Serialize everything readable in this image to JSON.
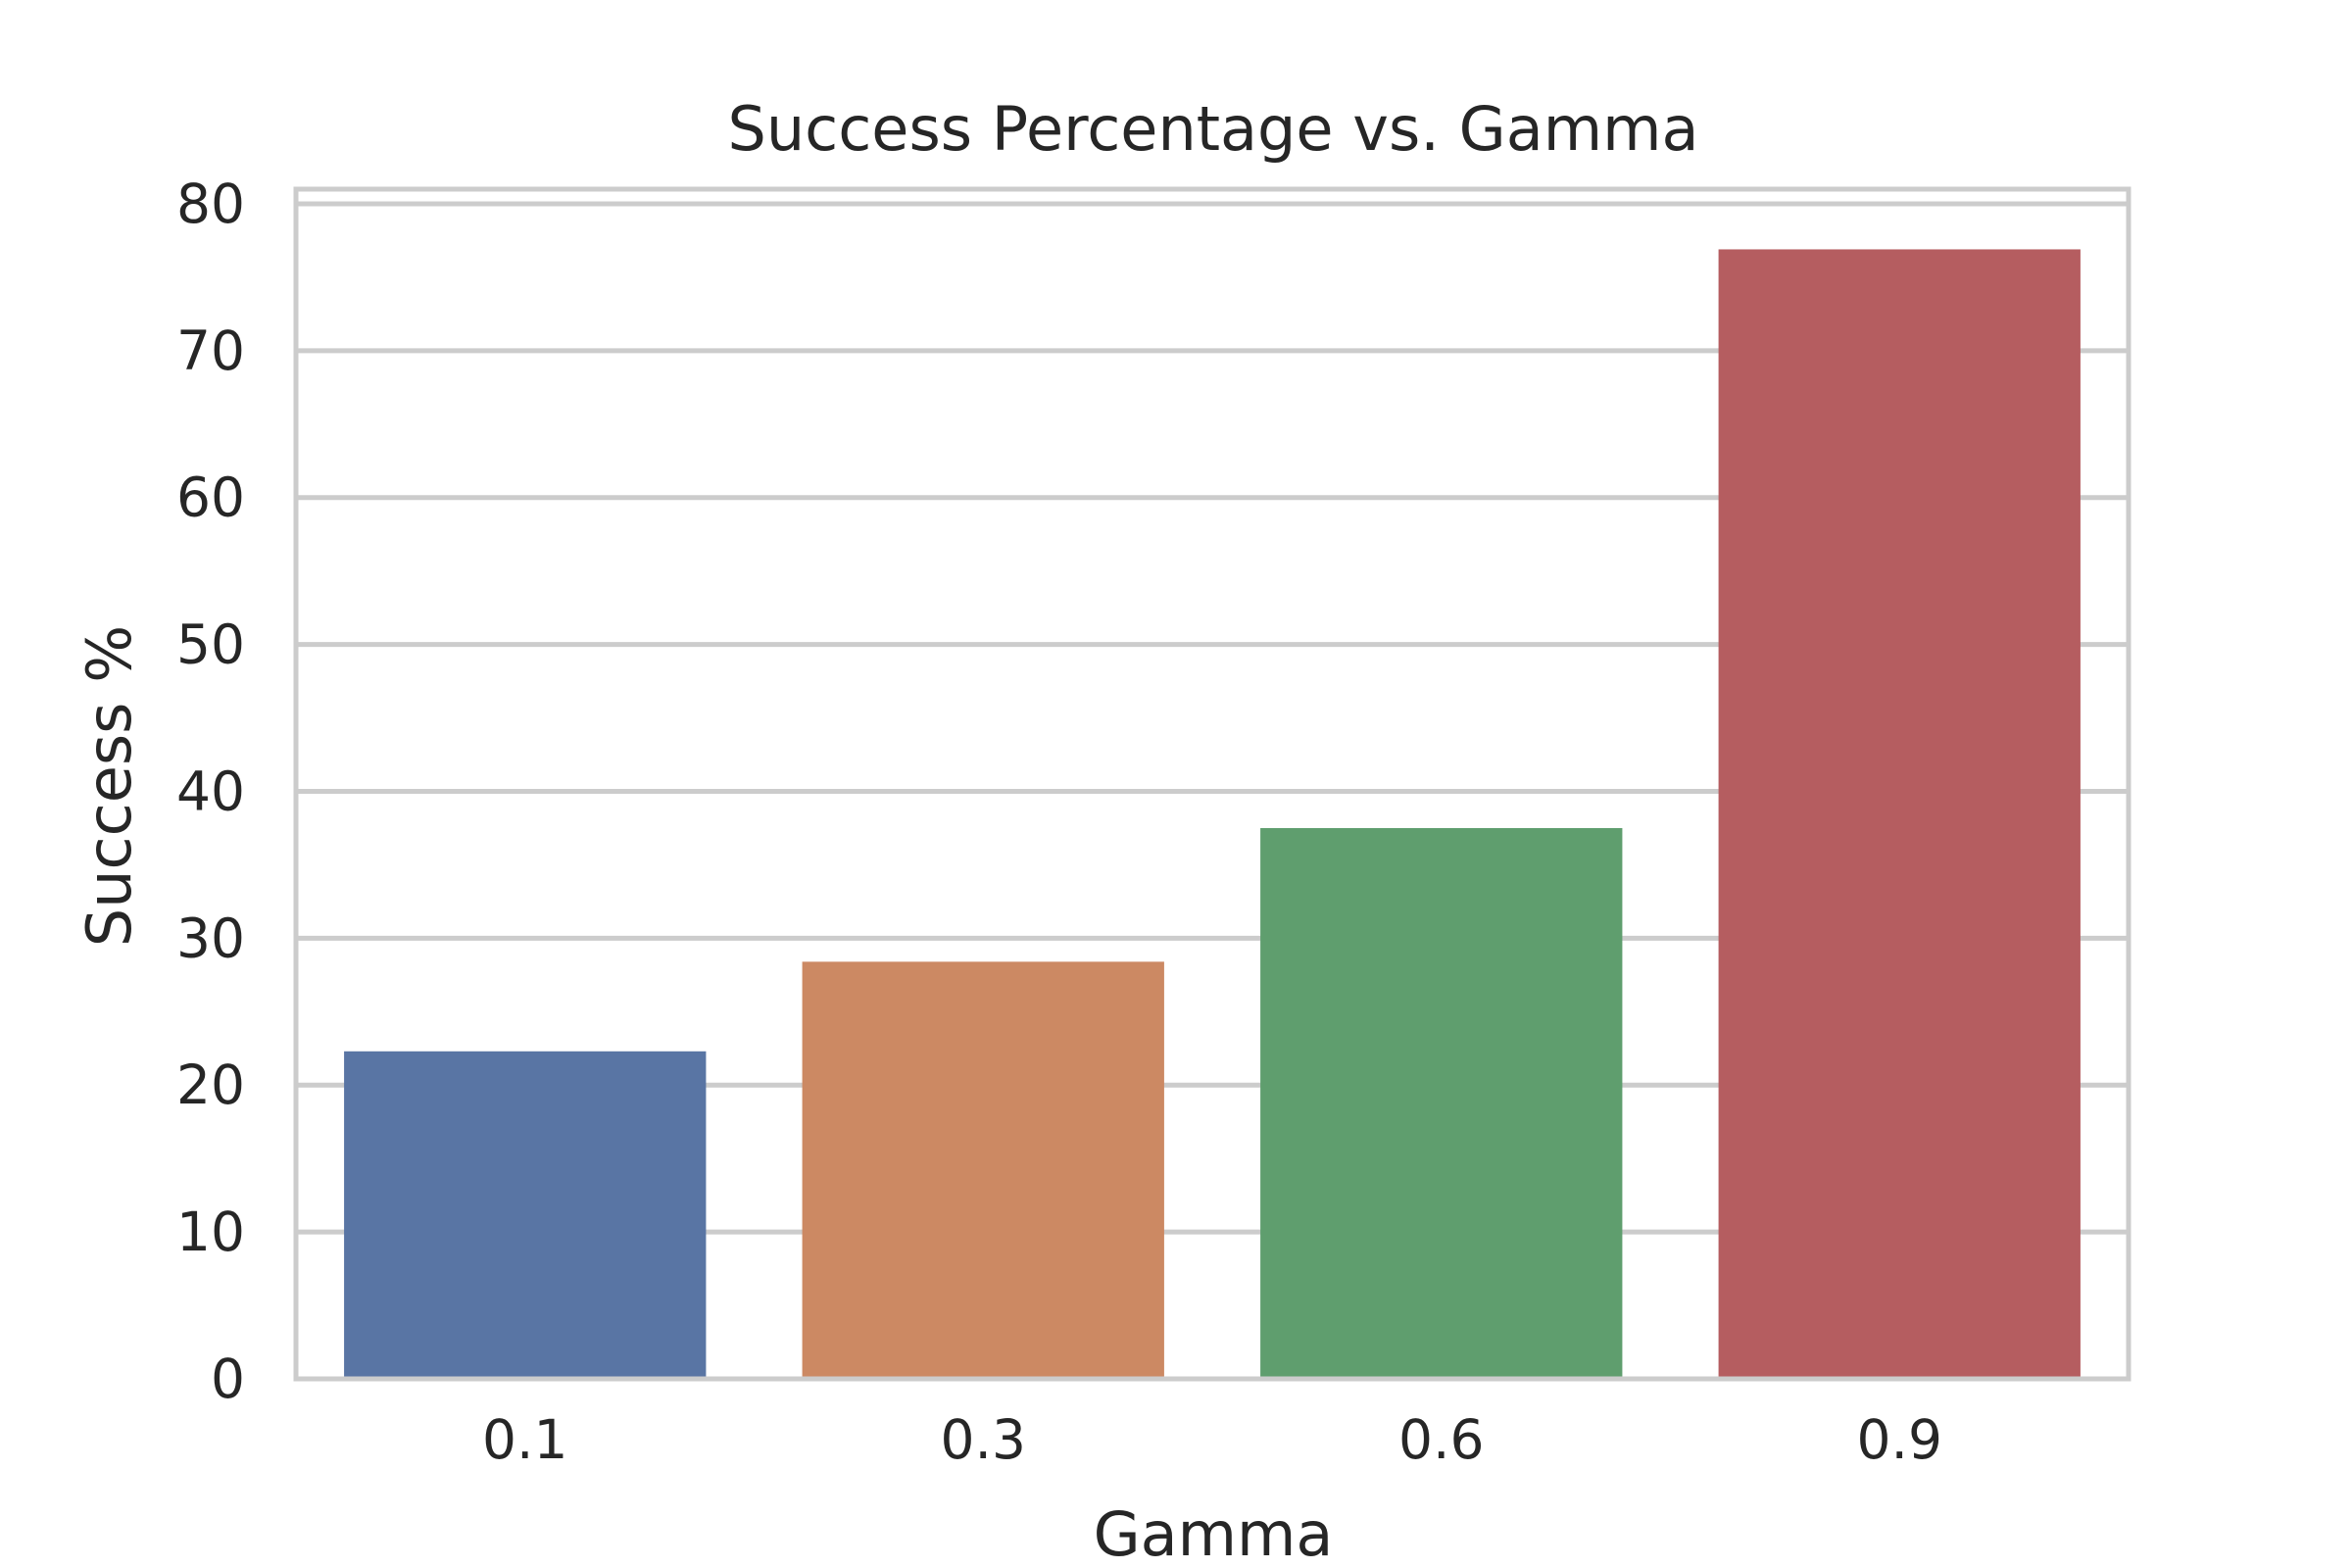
{
  "chart_data": {
    "type": "bar",
    "title": "Success Percentage vs. Gamma",
    "xlabel": "Gamma",
    "ylabel": "Success %",
    "categories": [
      "0.1",
      "0.3",
      "0.6",
      "0.9"
    ],
    "values": [
      22.3,
      28.4,
      37.5,
      76.9
    ],
    "colors": [
      "#5975a4",
      "#cc8963",
      "#5f9e6e",
      "#b55d60"
    ],
    "ylim": [
      0,
      81
    ],
    "yticks": [
      0,
      10,
      20,
      30,
      40,
      50,
      60,
      70,
      80
    ],
    "grid": true,
    "legend": "none"
  }
}
